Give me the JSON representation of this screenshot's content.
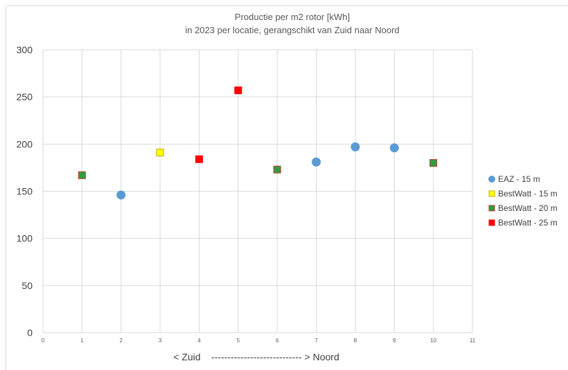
{
  "chart_data": {
    "type": "scatter",
    "title": "Productie per m2 rotor [kWh]",
    "subtitle": "in 2023 per locatie, gerangschikt van Zuid naar Noord",
    "xlabel": "< Zuid    ---------------------------- > Noord",
    "ylabel": "",
    "xlim": [
      0,
      11
    ],
    "ylim": [
      0,
      300
    ],
    "x_ticks": [
      0,
      1,
      2,
      3,
      4,
      5,
      6,
      7,
      8,
      9,
      10,
      11
    ],
    "y_ticks": [
      0,
      50,
      100,
      150,
      200,
      250,
      300
    ],
    "grid": true,
    "legend_position": "right",
    "series": [
      {
        "name": "EAZ - 15 m",
        "marker": "circle",
        "color": "#5b9bd5",
        "edge": "#5b9bd5",
        "points": [
          {
            "x": 2,
            "y": 146
          },
          {
            "x": 7,
            "y": 181
          },
          {
            "x": 8,
            "y": 197
          },
          {
            "x": 9,
            "y": 196
          }
        ]
      },
      {
        "name": "BestWatt - 15 m",
        "marker": "square",
        "color": "#ffff00",
        "edge": "#c9a800",
        "points": [
          {
            "x": 3,
            "y": 191
          }
        ]
      },
      {
        "name": "BestWatt - 20 m",
        "marker": "square",
        "color": "#2e9e3e",
        "edge": "#c0392b",
        "points": [
          {
            "x": 1,
            "y": 167
          },
          {
            "x": 6,
            "y": 173
          },
          {
            "x": 10,
            "y": 180
          }
        ]
      },
      {
        "name": "BestWatt - 25 m",
        "marker": "square",
        "color": "#ff0000",
        "edge": "#ff0000",
        "points": [
          {
            "x": 4,
            "y": 184
          },
          {
            "x": 5,
            "y": 257
          }
        ]
      }
    ]
  }
}
